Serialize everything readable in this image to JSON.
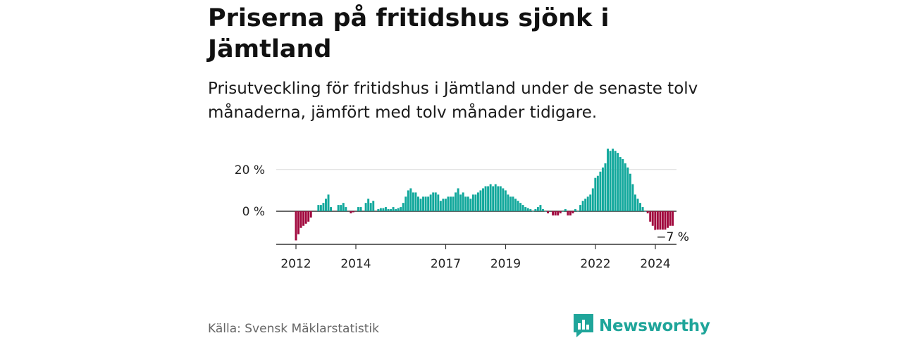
{
  "title": "Priserna på fritidshus sjönk i Jämtland",
  "subtitle": "Prisutveckling för fritidshus i Jämtland under de senaste tolv månaderna, jämfört med tolv månader tidigare.",
  "source": "Källa: Svensk Mäklarstatistik",
  "brand": "Newsworthy",
  "colors": {
    "positive": "#12a89c",
    "negative": "#a1093e",
    "text": "#111111",
    "muted": "#666666"
  },
  "chart_data": {
    "type": "bar",
    "title": "Priserna på fritidshus sjönk i Jämtland",
    "ylabel": "%",
    "ylim": [
      -16,
      30
    ],
    "yticks": [
      0,
      20
    ],
    "ytick_labels": [
      "0 %",
      "20 %"
    ],
    "x_start": 2012.0,
    "x_step": 0.0833,
    "xlim": [
      2011.4,
      2024.75
    ],
    "xticks": [
      2012,
      2014,
      2017,
      2019,
      2022,
      2024
    ],
    "last_label": "−7 %",
    "values": [
      -14,
      -11,
      -8,
      -7,
      -6,
      -5,
      -3,
      null,
      null,
      3,
      3,
      4,
      6,
      8,
      2,
      null,
      null,
      3,
      3,
      4,
      2,
      null,
      -1,
      -0.5,
      null,
      2,
      2,
      null,
      4,
      6,
      4,
      5,
      null,
      1,
      1.5,
      1.5,
      2,
      1,
      1,
      2,
      1,
      1.5,
      2,
      4,
      7,
      10,
      11,
      9,
      9,
      7,
      6,
      7,
      7,
      7,
      8,
      9,
      9,
      8,
      5,
      6,
      6,
      7,
      7,
      7,
      9,
      11,
      8,
      9,
      7,
      7,
      6,
      8,
      8,
      9,
      10,
      11,
      12,
      12,
      13,
      12,
      13,
      12,
      12,
      11,
      10,
      8,
      7,
      7,
      6,
      5,
      4,
      3,
      2,
      1.5,
      1,
      0,
      1,
      2,
      3,
      1,
      0,
      -1,
      null,
      -2,
      -2,
      -2,
      -1,
      0,
      1,
      -2,
      -2,
      -1,
      1,
      0,
      3,
      5,
      6,
      7,
      8,
      11,
      16,
      17,
      19,
      21,
      23,
      30,
      29,
      30,
      29,
      28,
      26,
      25,
      23,
      21,
      18,
      13,
      8,
      6,
      4,
      2,
      0,
      -1,
      -5,
      -7,
      -9,
      -10,
      -10,
      -9,
      -9,
      -8,
      -7,
      -7
    ]
  }
}
